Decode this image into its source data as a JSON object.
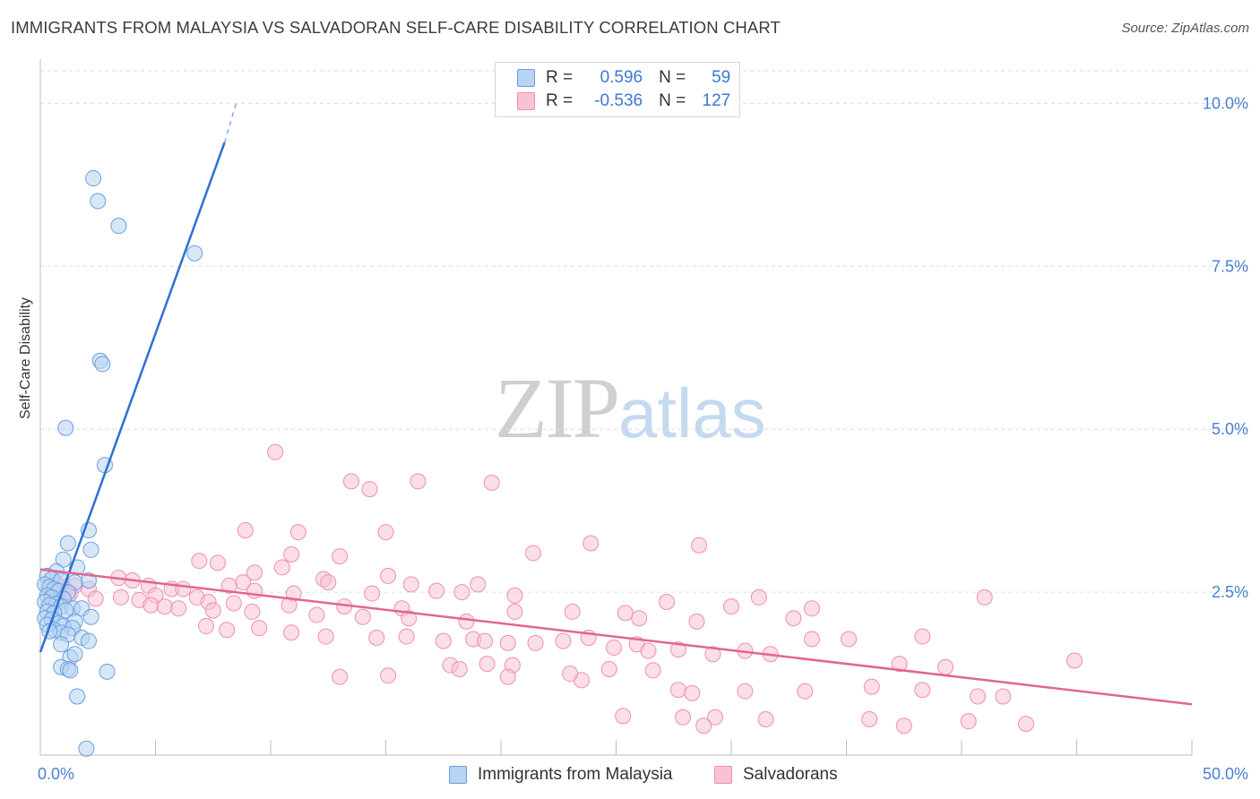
{
  "header": {
    "title": "IMMIGRANTS FROM MALAYSIA VS SALVADORAN SELF-CARE DISABILITY CORRELATION CHART",
    "source": "Source: ZipAtlas.com"
  },
  "watermark": {
    "zip": "ZIP",
    "atlas": "atlas"
  },
  "legend": {
    "rows": [
      {
        "r_key": "R =",
        "r_val": "0.596",
        "n_key": "N =",
        "n_val": "59"
      },
      {
        "r_key": "R =",
        "r_val": "-0.536",
        "n_key": "N =",
        "n_val": "127"
      }
    ]
  },
  "bottom_legend": {
    "series1": "Immigrants from Malaysia",
    "series2": "Salvadorans"
  },
  "colors": {
    "blue_fill": "#b8d3f3",
    "blue_stroke": "#6a9fe0",
    "blue_line": "#2f6fd3",
    "pink_fill": "#f7c2d4",
    "pink_stroke": "#ee8fae",
    "pink_line": "#e2668f",
    "axis_label": "#4a7fd0",
    "grid": "#dcdcdc"
  },
  "chart_data": {
    "type": "scatter",
    "title": "IMMIGRANTS FROM MALAYSIA VS SALVADORAN SELF-CARE DISABILITY CORRELATION CHART",
    "xlabel": "",
    "ylabel": "Self-Care Disability",
    "xlim": [
      0,
      50
    ],
    "ylim": [
      0,
      10.5
    ],
    "x_tick_labels": [
      "0.0%",
      "50.0%"
    ],
    "y_ticks": [
      2.5,
      5.0,
      7.5,
      10.0
    ],
    "y_tick_labels": [
      "2.5%",
      "5.0%",
      "7.5%",
      "10.0%"
    ],
    "grid": true,
    "series": [
      {
        "name": "Immigrants from Malaysia",
        "R": 0.596,
        "N": 59,
        "trend": {
          "x": [
            0.0,
            8.0
          ],
          "y": [
            1.58,
            9.4
          ],
          "dashed_to": [
            8.5,
            10.0
          ]
        },
        "points": [
          [
            2.3,
            8.85
          ],
          [
            2.5,
            8.5
          ],
          [
            3.4,
            8.12
          ],
          [
            6.7,
            7.7
          ],
          [
            2.6,
            6.05
          ],
          [
            2.7,
            6.0
          ],
          [
            1.1,
            5.02
          ],
          [
            2.8,
            4.45
          ],
          [
            2.1,
            3.45
          ],
          [
            2.2,
            3.15
          ],
          [
            1.2,
            3.25
          ],
          [
            1.0,
            3.0
          ],
          [
            1.6,
            2.88
          ],
          [
            0.7,
            2.82
          ],
          [
            0.3,
            2.75
          ],
          [
            0.5,
            2.7
          ],
          [
            0.9,
            2.68
          ],
          [
            2.1,
            2.68
          ],
          [
            1.5,
            2.65
          ],
          [
            0.2,
            2.62
          ],
          [
            0.4,
            2.58
          ],
          [
            0.6,
            2.55
          ],
          [
            0.8,
            2.52
          ],
          [
            1.2,
            2.5
          ],
          [
            0.3,
            2.45
          ],
          [
            0.5,
            2.42
          ],
          [
            1.0,
            2.4
          ],
          [
            0.2,
            2.35
          ],
          [
            0.7,
            2.32
          ],
          [
            0.4,
            2.3
          ],
          [
            0.9,
            2.28
          ],
          [
            1.4,
            2.25
          ],
          [
            1.1,
            2.22
          ],
          [
            0.3,
            2.2
          ],
          [
            0.6,
            2.18
          ],
          [
            1.8,
            2.25
          ],
          [
            2.2,
            2.12
          ],
          [
            0.2,
            2.1
          ],
          [
            0.5,
            2.08
          ],
          [
            1.5,
            2.05
          ],
          [
            0.8,
            2.02
          ],
          [
            0.3,
            2.0
          ],
          [
            1.0,
            1.98
          ],
          [
            1.4,
            1.95
          ],
          [
            0.6,
            1.92
          ],
          [
            0.9,
            1.88
          ],
          [
            1.2,
            1.85
          ],
          [
            0.4,
            1.9
          ],
          [
            1.8,
            1.8
          ],
          [
            2.1,
            1.75
          ],
          [
            0.9,
            1.7
          ],
          [
            1.3,
            1.5
          ],
          [
            1.5,
            1.55
          ],
          [
            0.9,
            1.35
          ],
          [
            1.2,
            1.32
          ],
          [
            1.3,
            1.3
          ],
          [
            2.9,
            1.28
          ],
          [
            1.6,
            0.9
          ],
          [
            2.0,
            0.1
          ]
        ]
      },
      {
        "name": "Salvadorans",
        "R": -0.536,
        "N": 127,
        "trend": {
          "x": [
            0.0,
            50.0
          ],
          "y": [
            2.85,
            0.78
          ]
        },
        "points": [
          [
            10.2,
            4.65
          ],
          [
            13.5,
            4.2
          ],
          [
            16.4,
            4.2
          ],
          [
            19.6,
            4.18
          ],
          [
            14.3,
            4.08
          ],
          [
            8.9,
            3.45
          ],
          [
            11.2,
            3.42
          ],
          [
            15.0,
            3.42
          ],
          [
            23.9,
            3.25
          ],
          [
            28.6,
            3.22
          ],
          [
            10.9,
            3.08
          ],
          [
            13.0,
            3.05
          ],
          [
            21.4,
            3.1
          ],
          [
            6.9,
            2.98
          ],
          [
            7.7,
            2.95
          ],
          [
            10.5,
            2.88
          ],
          [
            9.3,
            2.8
          ],
          [
            15.1,
            2.75
          ],
          [
            12.3,
            2.7
          ],
          [
            12.5,
            2.65
          ],
          [
            3.4,
            2.72
          ],
          [
            4.0,
            2.68
          ],
          [
            8.8,
            2.65
          ],
          [
            16.1,
            2.62
          ],
          [
            19.0,
            2.62
          ],
          [
            1.5,
            2.6
          ],
          [
            4.7,
            2.6
          ],
          [
            8.2,
            2.6
          ],
          [
            2.1,
            2.55
          ],
          [
            5.7,
            2.55
          ],
          [
            6.2,
            2.55
          ],
          [
            9.3,
            2.52
          ],
          [
            17.2,
            2.52
          ],
          [
            18.3,
            2.5
          ],
          [
            11.0,
            2.48
          ],
          [
            14.4,
            2.48
          ],
          [
            20.6,
            2.45
          ],
          [
            5.0,
            2.45
          ],
          [
            6.8,
            2.42
          ],
          [
            1.2,
            2.45
          ],
          [
            2.4,
            2.4
          ],
          [
            3.5,
            2.42
          ],
          [
            4.3,
            2.38
          ],
          [
            7.3,
            2.35
          ],
          [
            8.4,
            2.33
          ],
          [
            10.8,
            2.3
          ],
          [
            13.2,
            2.28
          ],
          [
            15.7,
            2.25
          ],
          [
            4.8,
            2.3
          ],
          [
            5.4,
            2.28
          ],
          [
            6.0,
            2.25
          ],
          [
            7.5,
            2.22
          ],
          [
            9.2,
            2.2
          ],
          [
            12.0,
            2.15
          ],
          [
            14.0,
            2.12
          ],
          [
            16.0,
            2.1
          ],
          [
            18.5,
            2.05
          ],
          [
            20.6,
            2.2
          ],
          [
            23.1,
            2.2
          ],
          [
            26.0,
            2.1
          ],
          [
            28.5,
            2.05
          ],
          [
            25.4,
            2.18
          ],
          [
            27.2,
            2.35
          ],
          [
            0.6,
            2.55
          ],
          [
            0.9,
            2.5
          ],
          [
            1.0,
            2.58
          ],
          [
            0.4,
            2.52
          ],
          [
            0.7,
            2.62
          ],
          [
            1.3,
            2.48
          ],
          [
            0.5,
            2.4
          ],
          [
            7.2,
            1.98
          ],
          [
            8.1,
            1.92
          ],
          [
            9.5,
            1.95
          ],
          [
            10.9,
            1.88
          ],
          [
            12.4,
            1.82
          ],
          [
            14.6,
            1.8
          ],
          [
            15.9,
            1.82
          ],
          [
            17.5,
            1.75
          ],
          [
            18.8,
            1.78
          ],
          [
            19.3,
            1.75
          ],
          [
            20.3,
            1.72
          ],
          [
            21.5,
            1.72
          ],
          [
            22.7,
            1.75
          ],
          [
            23.8,
            1.8
          ],
          [
            24.9,
            1.65
          ],
          [
            25.9,
            1.7
          ],
          [
            26.4,
            1.6
          ],
          [
            27.7,
            1.62
          ],
          [
            29.2,
            1.55
          ],
          [
            30.6,
            1.6
          ],
          [
            31.7,
            1.55
          ],
          [
            33.5,
            1.78
          ],
          [
            35.1,
            1.78
          ],
          [
            38.3,
            1.82
          ],
          [
            19.4,
            1.4
          ],
          [
            20.5,
            1.38
          ],
          [
            24.7,
            1.32
          ],
          [
            26.6,
            1.3
          ],
          [
            17.8,
            1.38
          ],
          [
            18.2,
            1.32
          ],
          [
            13.0,
            1.2
          ],
          [
            15.1,
            1.22
          ],
          [
            23.5,
            1.15
          ],
          [
            20.3,
            1.2
          ],
          [
            23.0,
            1.25
          ],
          [
            30.0,
            2.28
          ],
          [
            32.7,
            2.1
          ],
          [
            31.2,
            2.42
          ],
          [
            33.5,
            2.25
          ],
          [
            37.3,
            1.4
          ],
          [
            39.3,
            1.35
          ],
          [
            44.9,
            1.45
          ],
          [
            27.7,
            1.0
          ],
          [
            28.3,
            0.95
          ],
          [
            30.6,
            0.98
          ],
          [
            33.2,
            0.98
          ],
          [
            38.3,
            1.0
          ],
          [
            40.7,
            0.9
          ],
          [
            41.8,
            0.9
          ],
          [
            36.1,
            1.05
          ],
          [
            25.3,
            0.6
          ],
          [
            27.9,
            0.58
          ],
          [
            29.3,
            0.58
          ],
          [
            28.8,
            0.45
          ],
          [
            31.5,
            0.55
          ],
          [
            37.5,
            0.45
          ],
          [
            40.3,
            0.52
          ],
          [
            42.8,
            0.48
          ],
          [
            36.0,
            0.55
          ],
          [
            41.0,
            2.42
          ]
        ]
      }
    ]
  }
}
